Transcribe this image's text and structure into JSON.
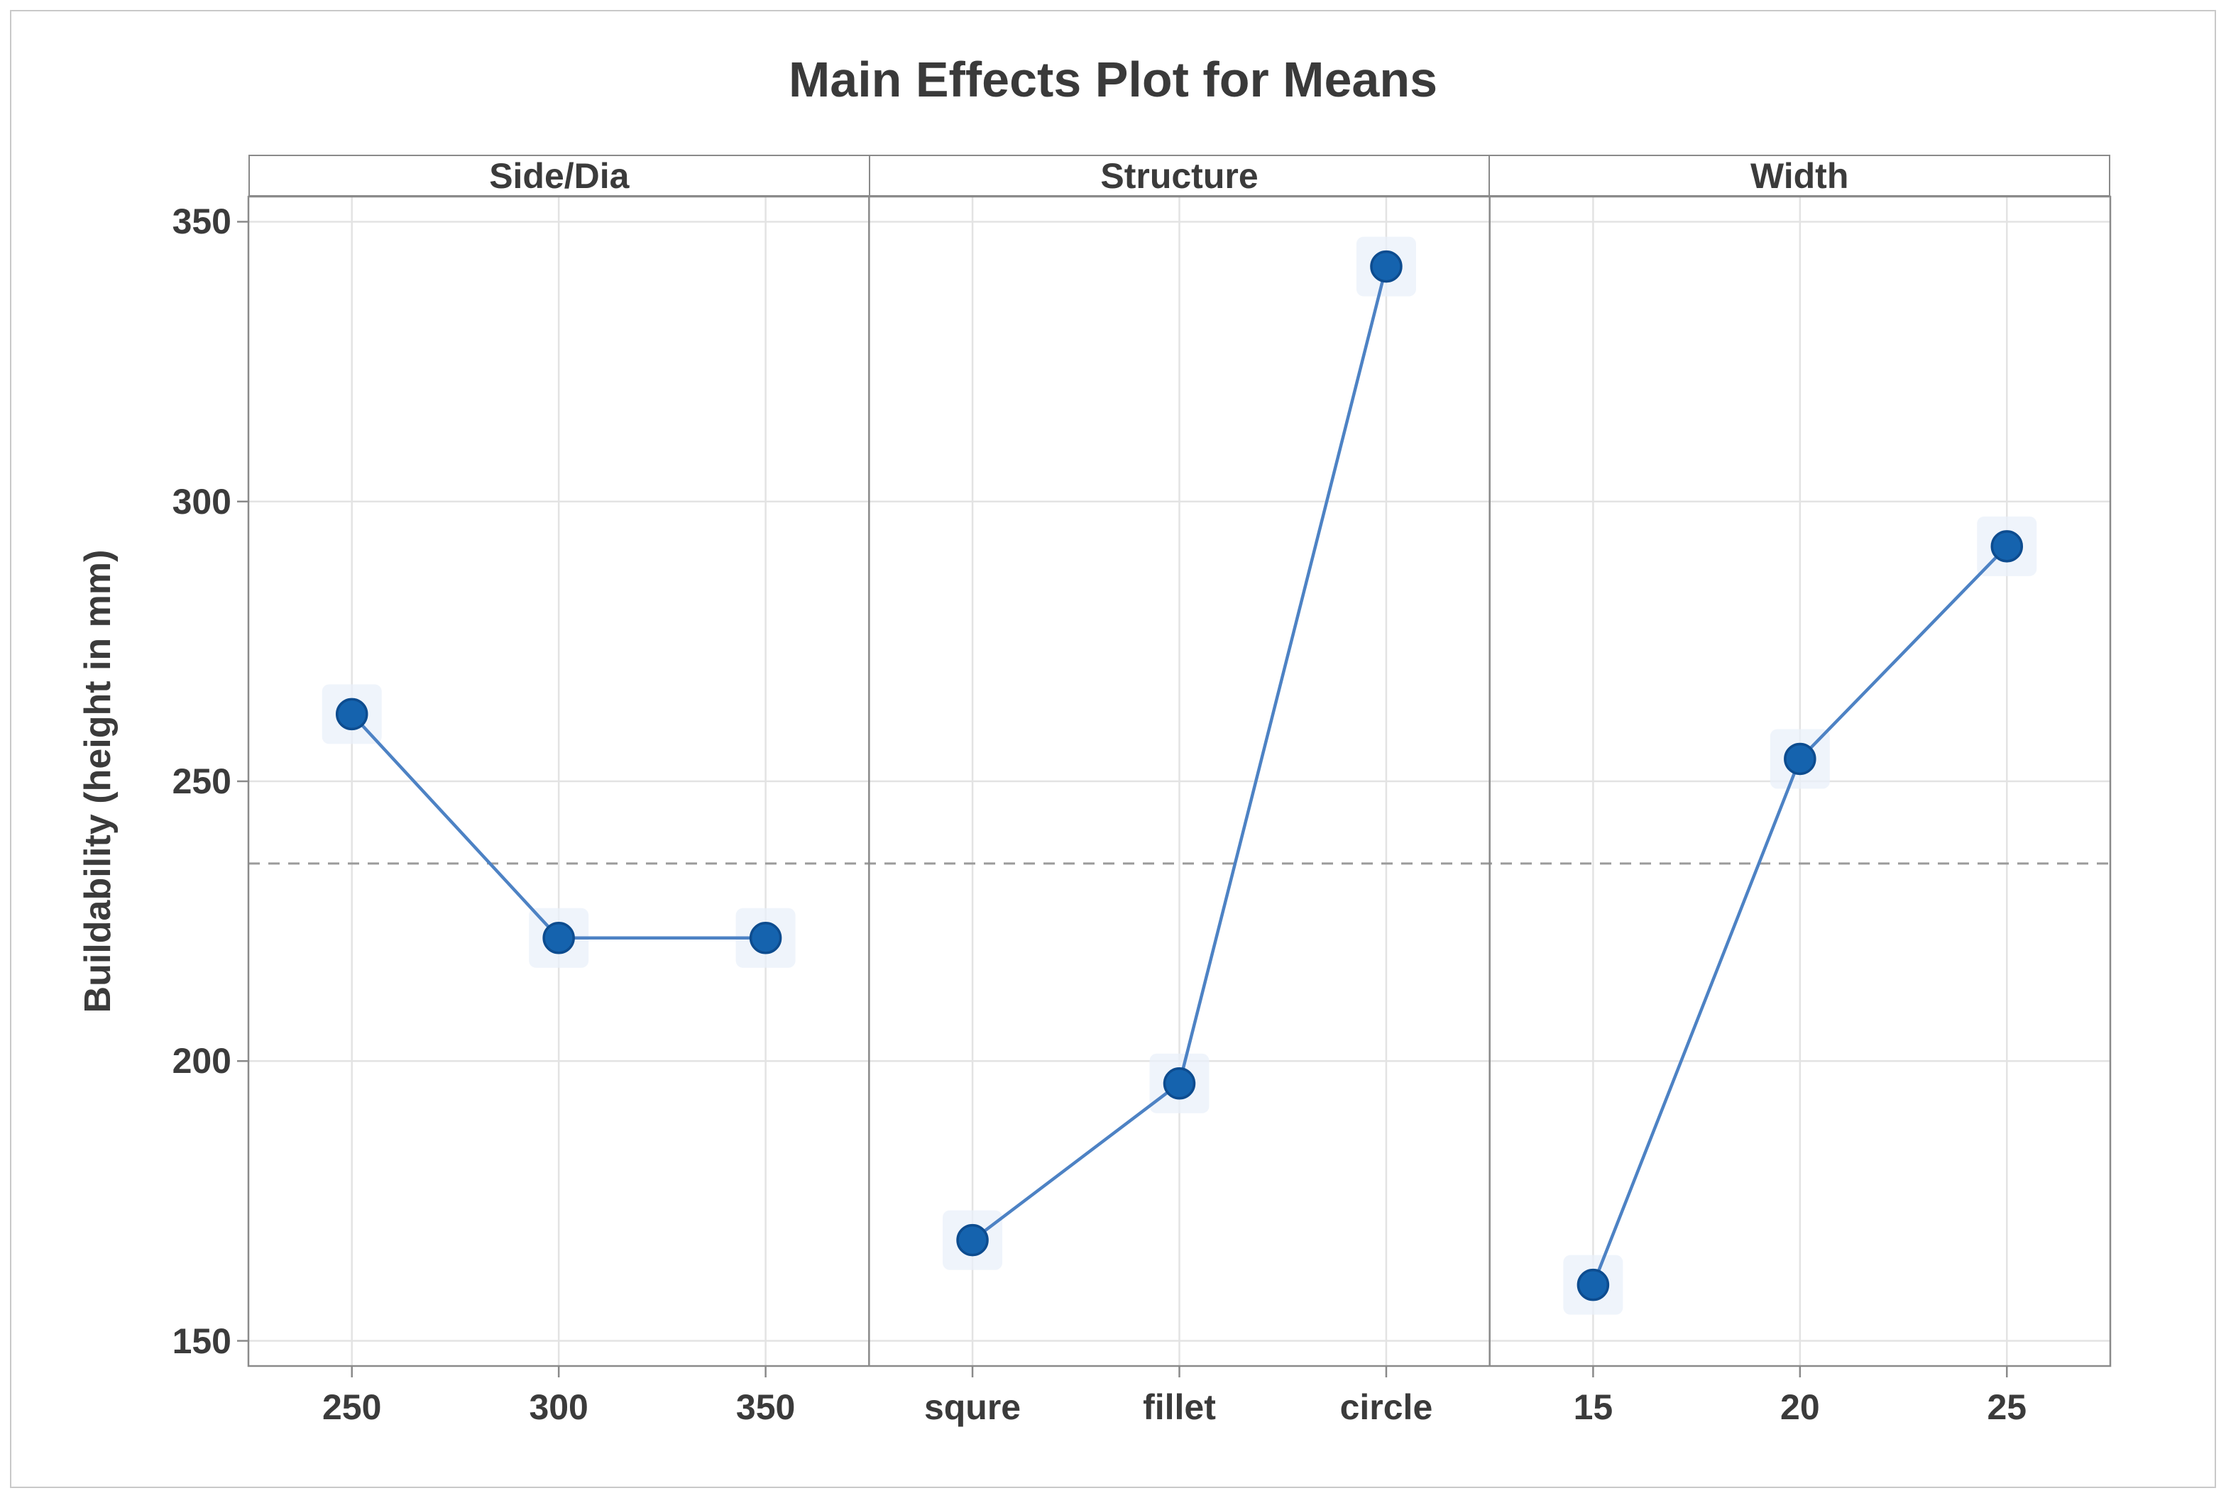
{
  "window": {
    "background": "#ffffff",
    "border_color": "#c9c9c9"
  },
  "chart_data": {
    "type": "line",
    "title": "Main Effects Plot for Means",
    "ylabel": "Buildability (height in mm)",
    "xlabel": "",
    "y_ticks": [
      350,
      300,
      250,
      200,
      150
    ],
    "ylim": [
      145.5,
      354.5
    ],
    "grid": true,
    "legend": false,
    "reference_line_mean": 235.3,
    "panels": [
      {
        "label": "Side/Dia",
        "categories": [
          "250",
          "300",
          "350"
        ],
        "values": [
          262,
          222,
          222
        ]
      },
      {
        "label": "Structure",
        "categories": [
          "squre",
          "fillet",
          "circle"
        ],
        "values": [
          168,
          196,
          342
        ]
      },
      {
        "label": "Width",
        "categories": [
          "15",
          "20",
          "25"
        ],
        "values": [
          160,
          254,
          292
        ]
      }
    ],
    "colors": {
      "marker_fill": "#1563ae",
      "marker_edge": "#0d4c8f",
      "marker_halo": "#e9f0f9",
      "line": "#4d82c4",
      "grid_line": "#e3e3e3",
      "frame": "#8a8a8a",
      "reference_line": "#9b9b9b",
      "text": "#3b3b3b"
    }
  }
}
